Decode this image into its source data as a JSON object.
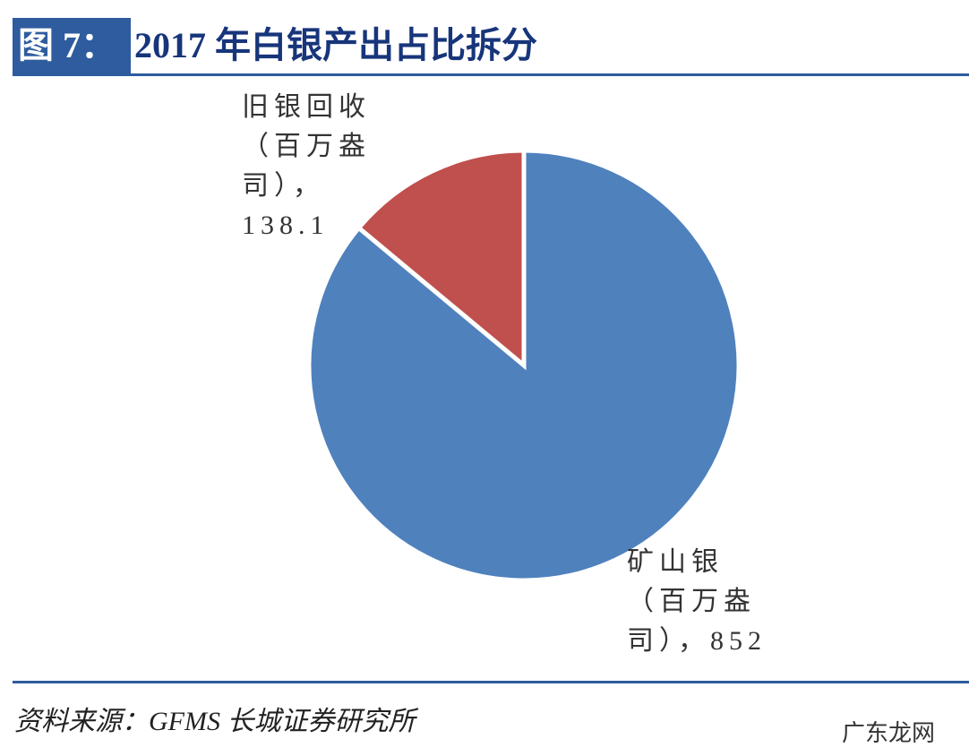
{
  "chart_data": {
    "type": "pie",
    "figure_label": "图 7：",
    "title": "2017 年白银产出占比拆分",
    "categories": [
      "旧银回收（百万盎司）",
      "矿山银（百万盎司）"
    ],
    "values": [
      138.1,
      852
    ],
    "colors": [
      "#c0504d",
      "#4f81bd"
    ],
    "label_separator": "，",
    "source": "资料来源：GFMS 长城证券研究所",
    "watermark": "广东龙网"
  }
}
